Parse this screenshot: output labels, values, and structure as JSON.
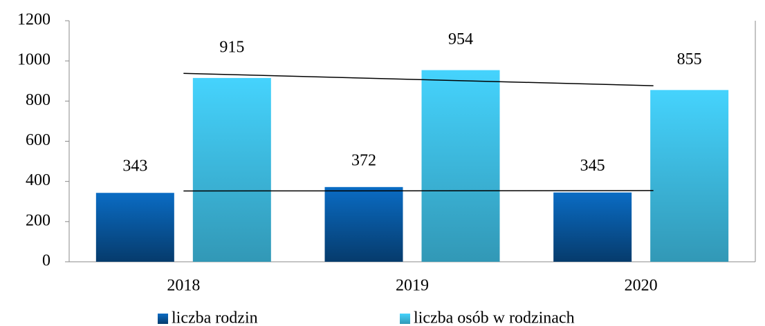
{
  "chart_data": {
    "type": "bar",
    "categories": [
      "2018",
      "2019",
      "2020"
    ],
    "series": [
      {
        "name": "liczba rodzin",
        "color": "#0a6cc4",
        "values": [
          343,
          372,
          345
        ]
      },
      {
        "name": "liczba osób w rodzinach",
        "color": "#45d3fd",
        "values": [
          915,
          954,
          855
        ]
      }
    ],
    "ylim": [
      0,
      1200
    ],
    "yticks": [
      0,
      200,
      400,
      600,
      800,
      1000,
      1200
    ],
    "trendline": "linear",
    "legend": "bottom"
  }
}
